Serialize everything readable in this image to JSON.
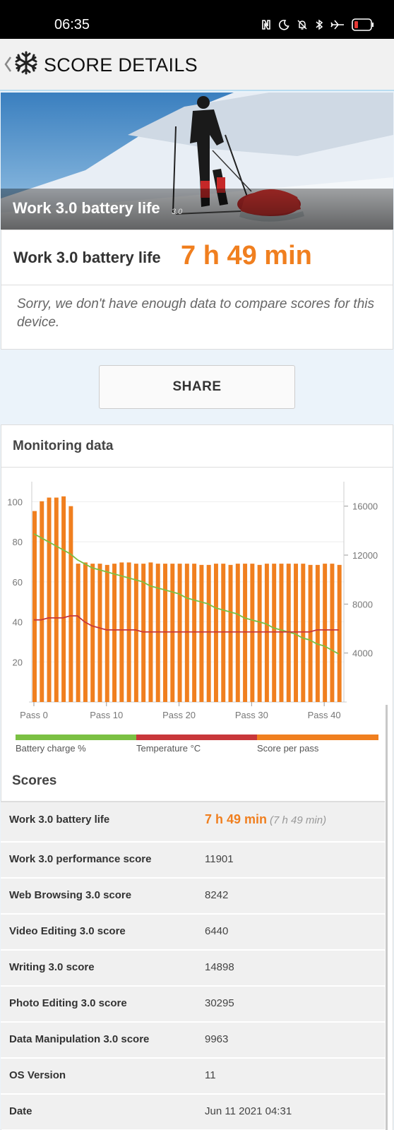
{
  "status_bar": {
    "time": "06:35",
    "icons": [
      "nfc-icon",
      "moon-icon",
      "bell-off-icon",
      "bluetooth-icon",
      "airplane-icon",
      "battery-low-icon"
    ]
  },
  "app_bar": {
    "title": "SCORE DETAILS",
    "back_icon": "chevron-left-icon",
    "logo_icon": "snowflake-logo-icon"
  },
  "hero": {
    "caption": "Work 3.0 battery life",
    "version": "3.0"
  },
  "result": {
    "label": "Work 3.0 battery life",
    "value": "7 h 49 min",
    "note": "Sorry, we don't have enough data to compare scores for this device."
  },
  "share_label": "SHARE",
  "monitoring": {
    "title": "Monitoring data",
    "legend": [
      {
        "label": "Battery charge %",
        "color": "#7bc043"
      },
      {
        "label": "Temperature °C",
        "color": "#c8373a"
      },
      {
        "label": "Score per pass",
        "color": "#f07f1f"
      }
    ]
  },
  "chart_data": {
    "type": "bar",
    "x_ticks": [
      "Pass 0",
      "Pass 10",
      "Pass 20",
      "Pass 30",
      "Pass 40"
    ],
    "left_axis": {
      "ticks": [
        20,
        40,
        60,
        80,
        100
      ],
      "ylim": [
        0,
        110
      ]
    },
    "right_axis": {
      "ticks": [
        4000,
        8000,
        12000,
        16000
      ],
      "ylim": [
        0,
        18000
      ]
    },
    "grid": true,
    "legend_position": "bottom",
    "series": [
      {
        "axis": "right",
        "kind": "bar",
        "color": "#f07f1f",
        "values": [
          15600,
          16400,
          16700,
          16700,
          16800,
          16000,
          11300,
          11400,
          11300,
          11300,
          11200,
          11300,
          11400,
          11400,
          11300,
          11300,
          11400,
          11300,
          11300,
          11300,
          11300,
          11300,
          11300,
          11200,
          11200,
          11300,
          11300,
          11200,
          11300,
          11300,
          11300,
          11200,
          11300,
          11300,
          11300,
          11300,
          11300,
          11300,
          11200,
          11200,
          11300,
          11300,
          11200
        ]
      },
      {
        "axis": "left",
        "kind": "line",
        "color": "#7bc043",
        "values": [
          84,
          82,
          80,
          78,
          76,
          74,
          71,
          69,
          67,
          66,
          65,
          64,
          63,
          62,
          61,
          60,
          58,
          57,
          56,
          55,
          54,
          52,
          51,
          50,
          49,
          47,
          46,
          45,
          44,
          42,
          41,
          40,
          39,
          37,
          36,
          35,
          34,
          32,
          31,
          29,
          28,
          26,
          24
        ]
      },
      {
        "axis": "left",
        "kind": "line",
        "color": "#c8373a",
        "values": [
          41,
          41,
          42,
          42,
          42,
          43,
          43,
          40,
          38,
          37,
          36,
          36,
          36,
          36,
          36,
          35,
          35,
          35,
          35,
          35,
          35,
          35,
          35,
          35,
          35,
          35,
          35,
          35,
          35,
          35,
          35,
          35,
          35,
          35,
          35,
          35,
          35,
          35,
          35,
          36,
          36,
          36,
          36
        ]
      }
    ]
  },
  "scores": {
    "title": "Scores",
    "rows": [
      {
        "label": "Work 3.0 battery life",
        "value": "7 h 49 min",
        "sub": "(7 h 49 min)"
      },
      {
        "label": "Work 3.0 performance score",
        "value": "11901"
      },
      {
        "label": "Web Browsing 3.0 score",
        "value": "8242"
      },
      {
        "label": "Video Editing 3.0 score",
        "value": "6440"
      },
      {
        "label": "Writing 3.0 score",
        "value": "14898"
      },
      {
        "label": "Photo Editing 3.0 score",
        "value": "30295"
      },
      {
        "label": "Data Manipulation 3.0 score",
        "value": "9963"
      },
      {
        "label": "OS Version",
        "value": "11"
      },
      {
        "label": "Date",
        "value": "Jun 11 2021 04:31"
      }
    ]
  }
}
